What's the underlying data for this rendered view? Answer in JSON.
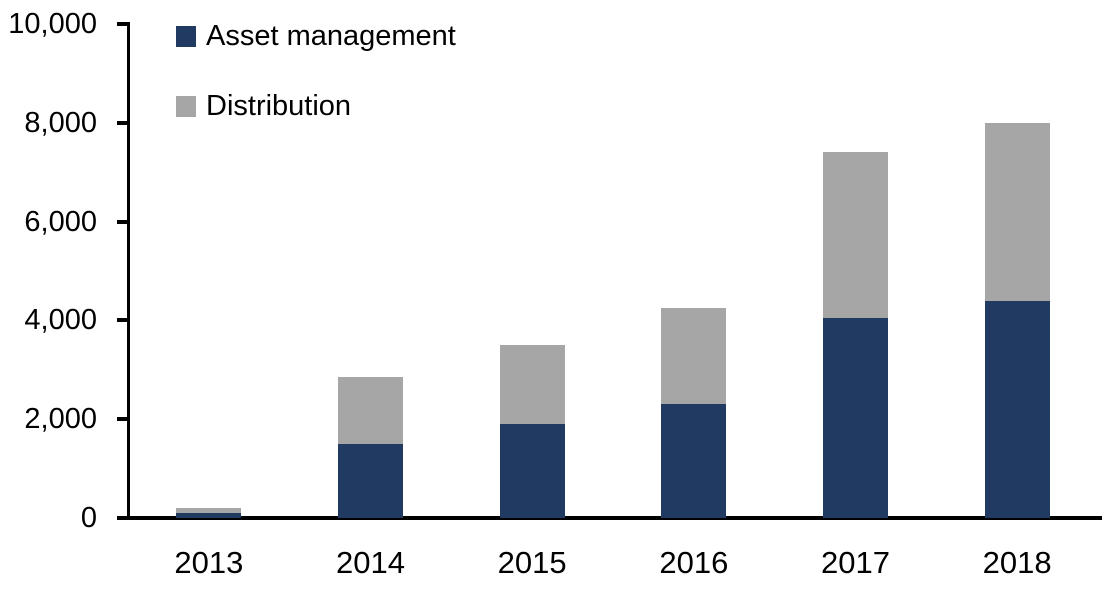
{
  "figure": {
    "background": "#ffffff",
    "text_color": "#000000",
    "axis_color": "#000000"
  },
  "chart_data": {
    "type": "bar",
    "stacked": true,
    "title": "",
    "xlabel": "",
    "ylabel": "",
    "categories": [
      "2013",
      "2014",
      "2015",
      "2016",
      "2017",
      "2018"
    ],
    "series": [
      {
        "name": "Asset management",
        "color": "#213A62",
        "values": [
          100,
          1500,
          1900,
          2300,
          4050,
          4400
        ]
      },
      {
        "name": "Distribution",
        "color": "#A6A6A6",
        "values": [
          100,
          1350,
          1600,
          1950,
          3350,
          3600
        ]
      }
    ],
    "ylim": [
      0,
      10000
    ],
    "yticks": [
      0,
      2000,
      4000,
      6000,
      8000,
      10000
    ],
    "ytick_labels": [
      "0",
      "2,000",
      "4,000",
      "6,000",
      "8,000",
      "10,000"
    ],
    "grid": false,
    "legend_position": "upper-left-inside"
  }
}
